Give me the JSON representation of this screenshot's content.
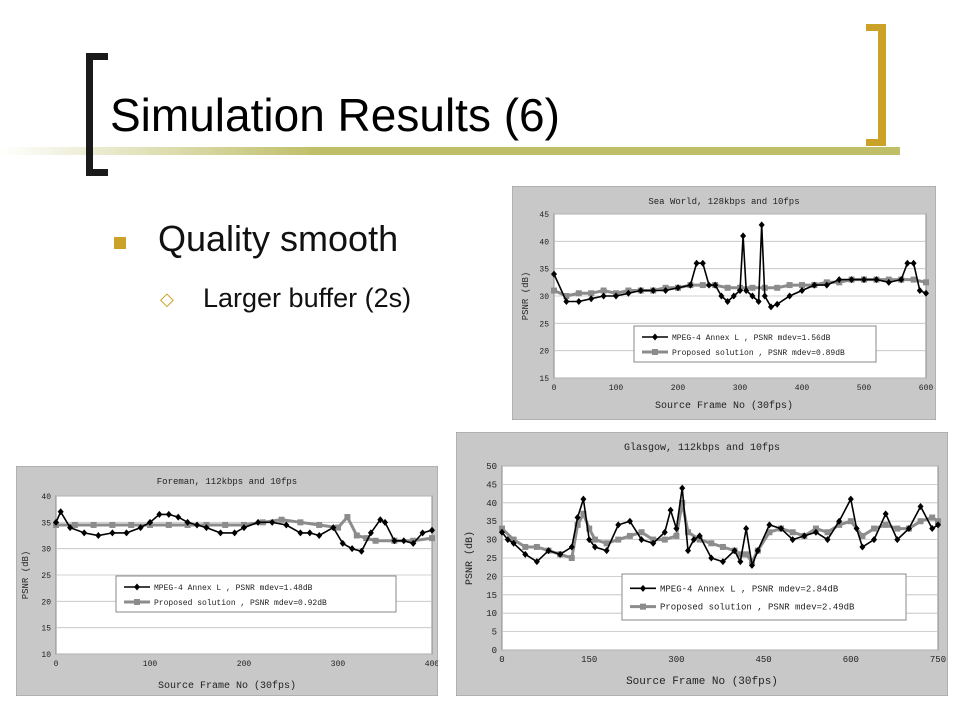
{
  "slide": {
    "title": "Simulation Results (6)",
    "bullet_1": "Quality smooth",
    "bullet_2": "Larger buffer (2s)",
    "colors": {
      "accent": "#c9a227",
      "olive": "#bfbf6a",
      "chart_bg": "#c8c8c8",
      "plot_bg": "#ffffff"
    }
  },
  "chart_data": [
    {
      "type": "line",
      "title": "Sea World, 128kbps and 10fps",
      "xlabel": "Source Frame No (30fps)",
      "ylabel": "PSNR (dB)",
      "xlim": [
        0,
        600
      ],
      "ylim": [
        15,
        45
      ],
      "xticks": [
        0,
        100,
        200,
        300,
        400,
        500,
        600
      ],
      "yticks": [
        15,
        20,
        25,
        30,
        35,
        40,
        45
      ],
      "legend_position": "bottom-right",
      "series": [
        {
          "name": "MPEG-4 Annex L , PSNR mdev=1.56dB",
          "marker": "diamond",
          "color": "#000000",
          "x": [
            0,
            20,
            40,
            60,
            80,
            100,
            120,
            140,
            160,
            180,
            200,
            220,
            230,
            240,
            250,
            260,
            270,
            280,
            290,
            300,
            305,
            310,
            320,
            330,
            335,
            340,
            350,
            360,
            380,
            400,
            420,
            440,
            460,
            480,
            500,
            520,
            540,
            560,
            570,
            580,
            590,
            600
          ],
          "y": [
            34,
            29,
            29,
            29.5,
            30,
            30,
            30.5,
            31,
            31,
            31,
            31.5,
            32,
            36,
            36,
            32,
            32,
            30,
            29,
            30,
            31,
            41,
            31,
            30,
            29,
            43,
            30,
            28,
            28.5,
            30,
            31,
            32,
            32,
            33,
            33,
            33,
            33,
            32.5,
            33,
            36,
            36,
            31,
            30.5
          ]
        },
        {
          "name": "Proposed solution , PSNR mdev=0.89dB",
          "marker": "square",
          "color": "#8c8c8c",
          "x": [
            0,
            20,
            40,
            60,
            80,
            100,
            120,
            140,
            160,
            180,
            200,
            220,
            240,
            260,
            280,
            300,
            320,
            340,
            360,
            380,
            400,
            420,
            440,
            460,
            480,
            500,
            520,
            540,
            560,
            580,
            600
          ],
          "y": [
            31,
            30,
            30.5,
            30.5,
            31,
            30.5,
            31,
            31,
            31,
            31.5,
            31.5,
            32,
            32,
            32,
            31.5,
            31.5,
            31.5,
            31.5,
            31.5,
            32,
            32,
            32,
            32.5,
            32.5,
            33,
            33,
            33,
            33,
            33,
            33,
            32.5
          ]
        }
      ]
    },
    {
      "type": "line",
      "title": "Foreman, 112kbps and 10fps",
      "xlabel": "Source Frame No (30fps)",
      "ylabel": "PSNR (dB)",
      "xlim": [
        0,
        400
      ],
      "ylim": [
        10,
        40
      ],
      "xticks": [
        0,
        100,
        200,
        300,
        400
      ],
      "yticks": [
        10,
        15,
        20,
        25,
        30,
        35,
        40
      ],
      "legend_position": "bottom-center",
      "series": [
        {
          "name": "MPEG-4 Annex L , PSNR mdev=1.48dB",
          "marker": "diamond",
          "color": "#000000",
          "x": [
            0,
            5,
            15,
            30,
            45,
            60,
            75,
            90,
            100,
            110,
            120,
            130,
            140,
            150,
            160,
            175,
            190,
            200,
            215,
            230,
            245,
            260,
            270,
            280,
            295,
            305,
            315,
            325,
            335,
            345,
            350,
            360,
            370,
            380,
            390,
            400
          ],
          "y": [
            35,
            37,
            34,
            33,
            32.5,
            33,
            33,
            34,
            35,
            36.5,
            36.5,
            36,
            35,
            34.5,
            34,
            33,
            33,
            34,
            35,
            35,
            34.5,
            33,
            33,
            32.5,
            34,
            31,
            30,
            29.5,
            33,
            35.5,
            35,
            31.5,
            31.5,
            31,
            33,
            33.5
          ]
        },
        {
          "name": "Proposed solution , PSNR mdev=0.92dB",
          "marker": "square",
          "color": "#8c8c8c",
          "x": [
            0,
            20,
            40,
            60,
            80,
            100,
            120,
            140,
            160,
            180,
            200,
            220,
            240,
            260,
            280,
            300,
            310,
            320,
            330,
            340,
            360,
            380,
            400
          ],
          "y": [
            34.5,
            34.5,
            34.5,
            34.5,
            34.5,
            34.5,
            34.5,
            34.5,
            34.5,
            34.5,
            34.5,
            35,
            35.5,
            35,
            34.5,
            34,
            36,
            32.5,
            32,
            31.5,
            31.5,
            31.5,
            32
          ]
        }
      ]
    },
    {
      "type": "line",
      "title": "Glasgow, 112kbps and 10fps",
      "xlabel": "Source Frame No (30fps)",
      "ylabel": "PSNR (dB)",
      "xlim": [
        0,
        750
      ],
      "ylim": [
        0,
        50
      ],
      "xticks": [
        0,
        150,
        300,
        450,
        600,
        750
      ],
      "yticks": [
        0,
        5,
        10,
        15,
        20,
        25,
        30,
        35,
        40,
        45,
        50
      ],
      "legend_position": "bottom-right",
      "series": [
        {
          "name": "MPEG-4 Annex L , PSNR mdev=2.84dB",
          "marker": "diamond",
          "color": "#000000",
          "x": [
            0,
            10,
            20,
            40,
            60,
            80,
            100,
            120,
            130,
            140,
            150,
            160,
            180,
            200,
            220,
            240,
            260,
            280,
            290,
            300,
            310,
            320,
            330,
            340,
            360,
            380,
            400,
            410,
            420,
            430,
            440,
            460,
            480,
            500,
            520,
            540,
            560,
            580,
            600,
            610,
            620,
            640,
            660,
            680,
            700,
            720,
            740,
            750
          ],
          "y": [
            32,
            30,
            29,
            26,
            24,
            27,
            26,
            28,
            36,
            41,
            30,
            28,
            27,
            34,
            35,
            30,
            29,
            32,
            38,
            33,
            44,
            27,
            30,
            31,
            25,
            24,
            27,
            24,
            33,
            23,
            27,
            34,
            33,
            30,
            31,
            32,
            30,
            35,
            41,
            33,
            28,
            30,
            37,
            30,
            33,
            39,
            33,
            34
          ]
        },
        {
          "name": "Proposed solution , PSNR mdev=2.49dB",
          "marker": "square",
          "color": "#8c8c8c",
          "x": [
            0,
            20,
            40,
            60,
            80,
            100,
            120,
            130,
            140,
            150,
            160,
            180,
            200,
            220,
            240,
            260,
            280,
            300,
            310,
            320,
            340,
            360,
            380,
            400,
            410,
            420,
            430,
            440,
            460,
            480,
            500,
            520,
            540,
            560,
            580,
            600,
            620,
            640,
            660,
            680,
            700,
            720,
            740,
            750
          ],
          "y": [
            33,
            30,
            28,
            28,
            27,
            26,
            25,
            34,
            37,
            33,
            30,
            29,
            30,
            31,
            32,
            30,
            30,
            31,
            40,
            32,
            30,
            29,
            28,
            27,
            26,
            26,
            24,
            27,
            32,
            33,
            32,
            31,
            33,
            32,
            34,
            35,
            31,
            33,
            34,
            33,
            33,
            35,
            36,
            35
          ]
        }
      ]
    }
  ]
}
